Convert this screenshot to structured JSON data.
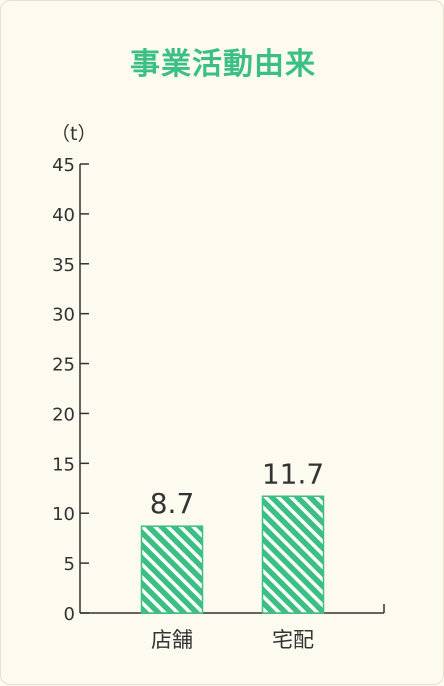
{
  "chart_data": {
    "type": "bar",
    "title": "事業活動由来",
    "unit": "（t）",
    "categories": [
      "店舗",
      "宅配"
    ],
    "values": [
      8.7,
      11.7
    ],
    "value_labels": [
      "8.7",
      "11.7"
    ],
    "yticks": [
      0,
      5,
      10,
      15,
      20,
      25,
      30,
      35,
      40,
      45
    ],
    "ylim": [
      0,
      45
    ],
    "grid": false,
    "bar_color": "#3cbf82",
    "bar_pattern": "diagonal-hatch"
  },
  "colors": {
    "background": "#fdfaf0",
    "title": "#3cbf82",
    "axis": "#333333"
  }
}
